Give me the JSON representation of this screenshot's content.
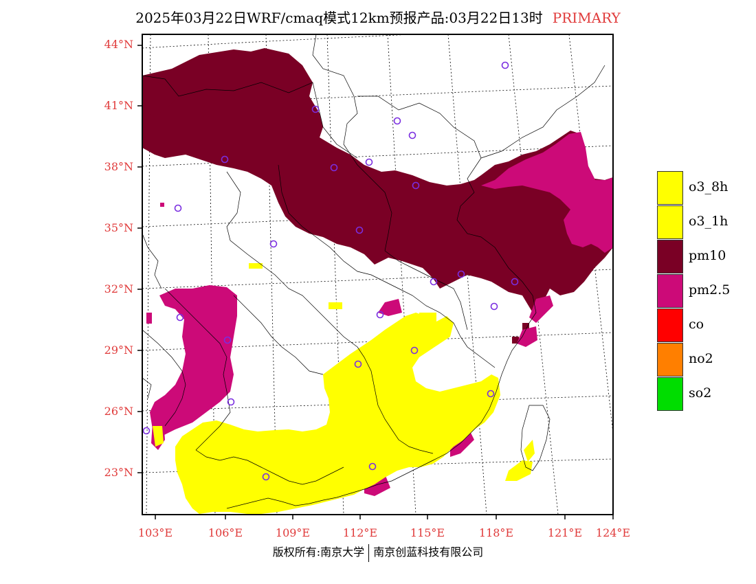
{
  "title": {
    "main": "2025年03月22日WRF/cmaq模式12km预报产品:03月22日13时",
    "tag": "PRIMARY"
  },
  "colors": {
    "o3_8h": "#ffff00",
    "o3_1h": "#ffff00",
    "pm10": "#7a0025",
    "pm2_5": "#cc0a78",
    "co": "#ff0000",
    "no2": "#ff7f00",
    "so2": "#00dd00",
    "station": "#7a2ee0",
    "label": "#e03a3a"
  },
  "lat_labels": [
    "44°N",
    "41°N",
    "38°N",
    "35°N",
    "32°N",
    "29°N",
    "26°N",
    "23°N"
  ],
  "lon_labels": [
    "103°E",
    "106°E",
    "109°E",
    "112°E",
    "115°E",
    "118°E",
    "121°E",
    "124°E"
  ],
  "legend": [
    {
      "label": "o3_8h",
      "color": "#ffff00"
    },
    {
      "label": "o3_1h",
      "color": "#ffff00"
    },
    {
      "label": "pm10",
      "color": "#7a0025"
    },
    {
      "label": "pm2.5",
      "color": "#cc0a78"
    },
    {
      "label": "co",
      "color": "#ff0000"
    },
    {
      "label": "no2",
      "color": "#ff7f00"
    },
    {
      "label": "so2",
      "color": "#00dd00"
    }
  ],
  "copyright": {
    "left": "版权所有:南京大学",
    "right": "南京创蓝科技有限公司"
  }
}
